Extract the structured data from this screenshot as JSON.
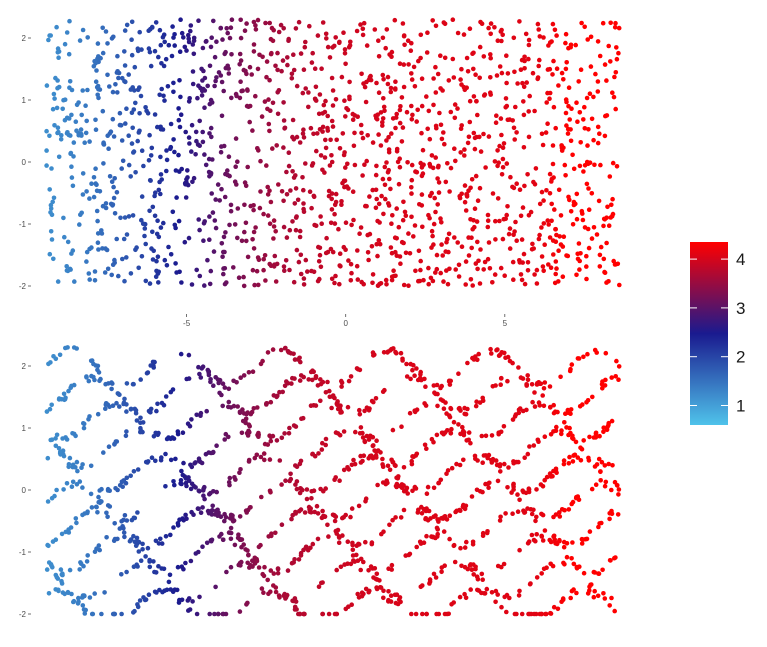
{
  "chart_data": [
    {
      "type": "scatter",
      "panel": "top",
      "title": "",
      "xlabel": "",
      "ylabel": "",
      "xlim": [
        -9.7,
        9.5
      ],
      "ylim": [
        -2.3,
        2.3
      ],
      "x_ticks": [
        "-5",
        "0",
        "5"
      ],
      "x_tick_values": [
        -5,
        0,
        5
      ],
      "y_ticks": [
        "-2",
        "-1",
        "0",
        "1",
        "2"
      ],
      "y_tick_values": [
        -2,
        -1,
        0,
        1,
        2
      ],
      "grid": false,
      "points": 1600,
      "x_range": [
        -9.4,
        8.6
      ],
      "y_range": [
        -2.0,
        2.3
      ],
      "color_by": "x",
      "pattern": "uniform random scatter"
    },
    {
      "type": "scatter",
      "panel": "bottom",
      "title": "",
      "xlabel": "",
      "ylabel": "",
      "xlim": [
        -9.7,
        9.5
      ],
      "ylim": [
        -2.3,
        2.3
      ],
      "y_ticks": [
        "-2",
        "-1",
        "0",
        "1",
        "2"
      ],
      "y_tick_values": [
        -2,
        -1,
        0,
        1,
        2
      ],
      "grid": false,
      "points": 1600,
      "x_range": [
        -9.4,
        8.6
      ],
      "y_range": [
        -2.0,
        2.3
      ],
      "color_by": "x",
      "pattern": "structured arcs / wave bands"
    }
  ],
  "legend": {
    "labels": [
      "4",
      "3",
      "2",
      "1"
    ],
    "values": [
      4,
      3,
      2,
      1
    ],
    "range": [
      0.6,
      4.35
    ],
    "colors": [
      "#4fc3ea",
      "#1a1a8f",
      "#ff0000"
    ],
    "placement": "right"
  }
}
